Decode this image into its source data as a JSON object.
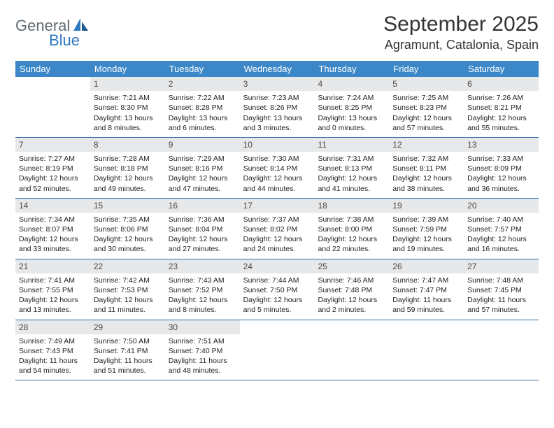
{
  "logo": {
    "part1": "General",
    "part2": "Blue"
  },
  "title": "September 2025",
  "location": "Agramunt, Catalonia, Spain",
  "colors": {
    "header_bg": "#3b87c8",
    "row_border": "#2f6ea8",
    "daynum_bg": "#e7e8e9",
    "logo_gray": "#5f6b74",
    "logo_blue": "#2f79bf"
  },
  "weekdays": [
    "Sunday",
    "Monday",
    "Tuesday",
    "Wednesday",
    "Thursday",
    "Friday",
    "Saturday"
  ],
  "weeks": [
    [
      {
        "blank": true
      },
      {
        "n": "1",
        "sunrise": "7:21 AM",
        "sunset": "8:30 PM",
        "daylight": "13 hours and 8 minutes."
      },
      {
        "n": "2",
        "sunrise": "7:22 AM",
        "sunset": "8:28 PM",
        "daylight": "13 hours and 6 minutes."
      },
      {
        "n": "3",
        "sunrise": "7:23 AM",
        "sunset": "8:26 PM",
        "daylight": "13 hours and 3 minutes."
      },
      {
        "n": "4",
        "sunrise": "7:24 AM",
        "sunset": "8:25 PM",
        "daylight": "13 hours and 0 minutes."
      },
      {
        "n": "5",
        "sunrise": "7:25 AM",
        "sunset": "8:23 PM",
        "daylight": "12 hours and 57 minutes."
      },
      {
        "n": "6",
        "sunrise": "7:26 AM",
        "sunset": "8:21 PM",
        "daylight": "12 hours and 55 minutes."
      }
    ],
    [
      {
        "n": "7",
        "sunrise": "7:27 AM",
        "sunset": "8:19 PM",
        "daylight": "12 hours and 52 minutes."
      },
      {
        "n": "8",
        "sunrise": "7:28 AM",
        "sunset": "8:18 PM",
        "daylight": "12 hours and 49 minutes."
      },
      {
        "n": "9",
        "sunrise": "7:29 AM",
        "sunset": "8:16 PM",
        "daylight": "12 hours and 47 minutes."
      },
      {
        "n": "10",
        "sunrise": "7:30 AM",
        "sunset": "8:14 PM",
        "daylight": "12 hours and 44 minutes."
      },
      {
        "n": "11",
        "sunrise": "7:31 AM",
        "sunset": "8:13 PM",
        "daylight": "12 hours and 41 minutes."
      },
      {
        "n": "12",
        "sunrise": "7:32 AM",
        "sunset": "8:11 PM",
        "daylight": "12 hours and 38 minutes."
      },
      {
        "n": "13",
        "sunrise": "7:33 AM",
        "sunset": "8:09 PM",
        "daylight": "12 hours and 36 minutes."
      }
    ],
    [
      {
        "n": "14",
        "sunrise": "7:34 AM",
        "sunset": "8:07 PM",
        "daylight": "12 hours and 33 minutes."
      },
      {
        "n": "15",
        "sunrise": "7:35 AM",
        "sunset": "8:06 PM",
        "daylight": "12 hours and 30 minutes."
      },
      {
        "n": "16",
        "sunrise": "7:36 AM",
        "sunset": "8:04 PM",
        "daylight": "12 hours and 27 minutes."
      },
      {
        "n": "17",
        "sunrise": "7:37 AM",
        "sunset": "8:02 PM",
        "daylight": "12 hours and 24 minutes."
      },
      {
        "n": "18",
        "sunrise": "7:38 AM",
        "sunset": "8:00 PM",
        "daylight": "12 hours and 22 minutes."
      },
      {
        "n": "19",
        "sunrise": "7:39 AM",
        "sunset": "7:59 PM",
        "daylight": "12 hours and 19 minutes."
      },
      {
        "n": "20",
        "sunrise": "7:40 AM",
        "sunset": "7:57 PM",
        "daylight": "12 hours and 16 minutes."
      }
    ],
    [
      {
        "n": "21",
        "sunrise": "7:41 AM",
        "sunset": "7:55 PM",
        "daylight": "12 hours and 13 minutes."
      },
      {
        "n": "22",
        "sunrise": "7:42 AM",
        "sunset": "7:53 PM",
        "daylight": "12 hours and 11 minutes."
      },
      {
        "n": "23",
        "sunrise": "7:43 AM",
        "sunset": "7:52 PM",
        "daylight": "12 hours and 8 minutes."
      },
      {
        "n": "24",
        "sunrise": "7:44 AM",
        "sunset": "7:50 PM",
        "daylight": "12 hours and 5 minutes."
      },
      {
        "n": "25",
        "sunrise": "7:46 AM",
        "sunset": "7:48 PM",
        "daylight": "12 hours and 2 minutes."
      },
      {
        "n": "26",
        "sunrise": "7:47 AM",
        "sunset": "7:47 PM",
        "daylight": "11 hours and 59 minutes."
      },
      {
        "n": "27",
        "sunrise": "7:48 AM",
        "sunset": "7:45 PM",
        "daylight": "11 hours and 57 minutes."
      }
    ],
    [
      {
        "n": "28",
        "sunrise": "7:49 AM",
        "sunset": "7:43 PM",
        "daylight": "11 hours and 54 minutes."
      },
      {
        "n": "29",
        "sunrise": "7:50 AM",
        "sunset": "7:41 PM",
        "daylight": "11 hours and 51 minutes."
      },
      {
        "n": "30",
        "sunrise": "7:51 AM",
        "sunset": "7:40 PM",
        "daylight": "11 hours and 48 minutes."
      },
      {
        "blank": true
      },
      {
        "blank": true
      },
      {
        "blank": true
      },
      {
        "blank": true
      }
    ]
  ],
  "labels": {
    "sunrise_prefix": "Sunrise: ",
    "sunset_prefix": "Sunset: ",
    "daylight_prefix": "Daylight: "
  }
}
